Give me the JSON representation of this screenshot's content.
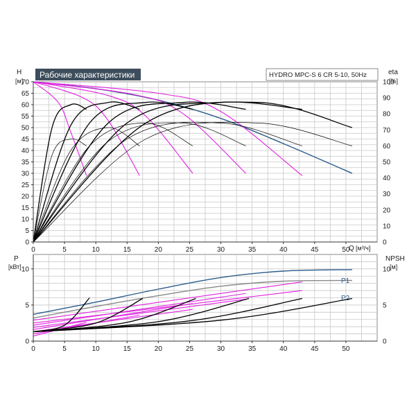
{
  "chart_data": [
    {
      "type": "line",
      "title": "Рабочие характеристики",
      "subtitle": "HYDRO MPC-S 6 CR 5-10, 50Hz",
      "xlabel": "Q",
      "x_unit": "[м³/ч]",
      "ylabel": "H",
      "y_unit": "[м]",
      "y2label": "eta",
      "y2_unit": "[%]",
      "xlim": [
        0,
        55
      ],
      "ylim": [
        0,
        70
      ],
      "y2lim": [
        0,
        100
      ],
      "x_ticks": [
        0,
        5,
        10,
        15,
        20,
        25,
        30,
        35,
        40,
        45,
        50
      ],
      "y_ticks": [
        0,
        5,
        10,
        15,
        20,
        25,
        30,
        35,
        40,
        45,
        50,
        55,
        60,
        65,
        70
      ],
      "y2_ticks": [
        0,
        10,
        20,
        30,
        40,
        50,
        60,
        70,
        80,
        90,
        100
      ],
      "grid": true,
      "series": [
        {
          "group": "head_max",
          "color": "#2a5b8a",
          "x": [
            0,
            10,
            20,
            30,
            40,
            51
          ],
          "y": [
            70,
            67,
            62,
            54,
            43,
            30
          ]
        },
        {
          "group": "head_reduced",
          "color": "#e020e0",
          "x": [
            0,
            4,
            6,
            8.5
          ],
          "y": [
            70,
            61,
            48,
            29
          ]
        },
        {
          "group": "head_reduced",
          "color": "#e020e0",
          "x": [
            0,
            8,
            12,
            17
          ],
          "y": [
            70,
            63,
            53,
            29
          ]
        },
        {
          "group": "head_reduced",
          "color": "#e020e0",
          "x": [
            0,
            12,
            18,
            25.5
          ],
          "y": [
            70,
            64,
            55,
            30
          ]
        },
        {
          "group": "head_reduced",
          "color": "#e020e0",
          "x": [
            0,
            16,
            24,
            34
          ],
          "y": [
            70,
            64.5,
            56,
            30
          ]
        },
        {
          "group": "head_reduced",
          "color": "#e020e0",
          "x": [
            0,
            20,
            30,
            43
          ],
          "y": [
            70,
            65,
            57,
            29
          ]
        },
        {
          "group": "eta",
          "color": "#000000",
          "x": [
            0,
            3,
            6,
            8.5
          ],
          "y": [
            0,
            50,
            60,
            58
          ]
        },
        {
          "group": "eta",
          "color": "#000000",
          "x": [
            0,
            6,
            12,
            17
          ],
          "y": [
            0,
            51,
            61,
            58
          ]
        },
        {
          "group": "eta",
          "color": "#000000",
          "x": [
            0,
            9,
            18,
            25.5
          ],
          "y": [
            0,
            52,
            61,
            58
          ]
        },
        {
          "group": "eta",
          "color": "#000000",
          "x": [
            0,
            12,
            24,
            34
          ],
          "y": [
            0,
            52,
            61,
            58
          ]
        },
        {
          "group": "eta",
          "color": "#000000",
          "x": [
            0,
            15,
            30,
            43
          ],
          "y": [
            0,
            52,
            61,
            58
          ]
        },
        {
          "group": "eta",
          "color": "#000000",
          "x": [
            0,
            18,
            36,
            51
          ],
          "y": [
            0,
            52,
            61,
            50
          ]
        },
        {
          "group": "eta_reduced",
          "color": "#000000",
          "x": [
            0,
            3,
            6,
            8.5
          ],
          "y": [
            0,
            38,
            45,
            42
          ]
        },
        {
          "group": "eta_reduced",
          "color": "#000000",
          "x": [
            0,
            6,
            12,
            17
          ],
          "y": [
            0,
            40,
            50,
            42
          ]
        },
        {
          "group": "eta_reduced",
          "color": "#000000",
          "x": [
            0,
            9,
            18,
            25.5
          ],
          "y": [
            0,
            42,
            52,
            42
          ]
        },
        {
          "group": "eta_reduced",
          "color": "#000000",
          "x": [
            0,
            12,
            24,
            34
          ],
          "y": [
            0,
            44,
            52,
            42
          ]
        },
        {
          "group": "eta_reduced",
          "color": "#000000",
          "x": [
            0,
            15,
            30,
            43
          ],
          "y": [
            0,
            45,
            52,
            42
          ]
        },
        {
          "group": "eta_reduced",
          "color": "#000000",
          "x": [
            0,
            18,
            36,
            51
          ],
          "y": [
            0,
            45,
            52,
            42
          ]
        }
      ]
    },
    {
      "type": "line",
      "xlim": [
        0,
        55
      ],
      "ylim": [
        0,
        12
      ],
      "y2lim": [
        0,
        12
      ],
      "ylabel": "P",
      "y_unit": "[кВт]",
      "y2label": "NPSH",
      "y2_unit": "[м]",
      "x_ticks": [
        0,
        5,
        10,
        15,
        20,
        25,
        30,
        35,
        40,
        45,
        50
      ],
      "y_ticks": [
        0,
        5,
        10
      ],
      "y2_ticks": [
        0,
        5,
        10
      ],
      "grid": true,
      "labels": [
        "P1",
        "P2"
      ],
      "series": [
        {
          "name": "P1",
          "color": "#2a5b8a",
          "x": [
            0,
            10,
            20,
            30,
            40,
            51
          ],
          "y": [
            3.7,
            5.4,
            7.2,
            8.8,
            9.7,
            9.9
          ]
        },
        {
          "name": "P2",
          "color": "#888888",
          "x": [
            0,
            10,
            20,
            30,
            40,
            51
          ],
          "y": [
            3.2,
            4.8,
            6.3,
            7.6,
            8.3,
            8.4
          ]
        },
        {
          "group": "power_reduced",
          "color": "#e020e0",
          "x": [
            0,
            43
          ],
          "y": [
            2.9,
            8.2
          ]
        },
        {
          "group": "power_reduced",
          "color": "#e020e0",
          "x": [
            0,
            43
          ],
          "y": [
            2.5,
            7.0
          ]
        },
        {
          "group": "power_reduced",
          "color": "#e020e0",
          "x": [
            0,
            34
          ],
          "y": [
            2.2,
            6.6
          ]
        },
        {
          "group": "power_reduced",
          "color": "#e020e0",
          "x": [
            0,
            34
          ],
          "y": [
            1.9,
            5.8
          ]
        },
        {
          "group": "power_reduced",
          "color": "#e020e0",
          "x": [
            0,
            25.5
          ],
          "y": [
            1.6,
            5.2
          ]
        },
        {
          "group": "power_reduced",
          "color": "#e020e0",
          "x": [
            0,
            25.5
          ],
          "y": [
            1.3,
            4.4
          ]
        },
        {
          "group": "power_reduced",
          "color": "#e020e0",
          "x": [
            0,
            17
          ],
          "y": [
            1.0,
            3.6
          ]
        },
        {
          "group": "power_reduced",
          "color": "#e020e0",
          "x": [
            0,
            8.5
          ],
          "y": [
            0.7,
            2.6
          ]
        },
        {
          "group": "npsh",
          "color": "#000000",
          "x": [
            0,
            5,
            9
          ],
          "y": [
            1.3,
            2.2,
            6.0
          ]
        },
        {
          "group": "npsh",
          "color": "#000000",
          "x": [
            0,
            10,
            17.5
          ],
          "y": [
            1.3,
            2.5,
            5.9
          ]
        },
        {
          "group": "npsh",
          "color": "#000000",
          "x": [
            0,
            15,
            26
          ],
          "y": [
            1.3,
            2.6,
            5.9
          ]
        },
        {
          "group": "npsh",
          "color": "#000000",
          "x": [
            0,
            20,
            34.5
          ],
          "y": [
            1.3,
            2.7,
            5.9
          ]
        },
        {
          "group": "npsh",
          "color": "#000000",
          "x": [
            0,
            25,
            43
          ],
          "y": [
            1.3,
            2.8,
            5.9
          ]
        },
        {
          "group": "npsh",
          "color": "#000000",
          "x": [
            0,
            30,
            51
          ],
          "y": [
            1.3,
            2.9,
            5.9
          ]
        }
      ]
    }
  ]
}
